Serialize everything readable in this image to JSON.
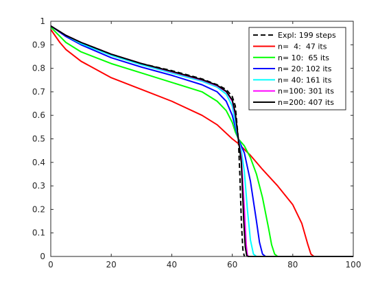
{
  "chart_data": {
    "type": "line",
    "title": "",
    "xlabel": "",
    "ylabel": "",
    "xlim": [
      0,
      100
    ],
    "ylim": [
      0,
      1
    ],
    "x_ticks": [
      0,
      20,
      40,
      60,
      80,
      100
    ],
    "y_ticks": [
      0,
      0.1,
      0.2,
      0.3,
      0.4,
      0.5,
      0.6,
      0.7,
      0.8,
      0.9,
      1
    ],
    "grid": false,
    "legend_position": "top-right",
    "series": [
      {
        "name": "Expl: 199 steps",
        "color": "#000000",
        "dashed": true,
        "points": [
          [
            0,
            0.98
          ],
          [
            5,
            0.94
          ],
          [
            10,
            0.91
          ],
          [
            20,
            0.86
          ],
          [
            30,
            0.82
          ],
          [
            40,
            0.79
          ],
          [
            50,
            0.755
          ],
          [
            55,
            0.73
          ],
          [
            58,
            0.71
          ],
          [
            60,
            0.68
          ],
          [
            61,
            0.64
          ],
          [
            62,
            0.5
          ],
          [
            62.5,
            0.35
          ],
          [
            63,
            0.15
          ],
          [
            63.5,
            0.03
          ],
          [
            64,
            0
          ]
        ]
      },
      {
        "name": "n=  4:  47 its",
        "color": "#ff0000",
        "dashed": false,
        "points": [
          [
            0,
            0.965
          ],
          [
            3,
            0.91
          ],
          [
            5,
            0.88
          ],
          [
            10,
            0.83
          ],
          [
            20,
            0.76
          ],
          [
            30,
            0.71
          ],
          [
            40,
            0.66
          ],
          [
            50,
            0.6
          ],
          [
            55,
            0.56
          ],
          [
            60,
            0.5
          ],
          [
            62,
            0.48
          ],
          [
            66,
            0.43
          ],
          [
            70,
            0.37
          ],
          [
            75,
            0.3
          ],
          [
            80,
            0.22
          ],
          [
            83,
            0.14
          ],
          [
            85,
            0.05
          ],
          [
            86,
            0.01
          ],
          [
            87,
            0
          ],
          [
            100,
            0
          ]
        ]
      },
      {
        "name": "n= 10:  65 its",
        "color": "#00ff00",
        "dashed": false,
        "points": [
          [
            0,
            0.975
          ],
          [
            5,
            0.91
          ],
          [
            10,
            0.87
          ],
          [
            20,
            0.82
          ],
          [
            30,
            0.78
          ],
          [
            40,
            0.74
          ],
          [
            50,
            0.7
          ],
          [
            55,
            0.66
          ],
          [
            58,
            0.62
          ],
          [
            60,
            0.57
          ],
          [
            61,
            0.53
          ],
          [
            62,
            0.5
          ],
          [
            64,
            0.47
          ],
          [
            66,
            0.42
          ],
          [
            68,
            0.35
          ],
          [
            70,
            0.25
          ],
          [
            72,
            0.12
          ],
          [
            73,
            0.05
          ],
          [
            74,
            0.01
          ],
          [
            75,
            0
          ],
          [
            100,
            0
          ]
        ]
      },
      {
        "name": "n= 20: 102 its",
        "color": "#0000ff",
        "dashed": false,
        "points": [
          [
            0,
            0.98
          ],
          [
            5,
            0.935
          ],
          [
            10,
            0.9
          ],
          [
            20,
            0.845
          ],
          [
            30,
            0.805
          ],
          [
            40,
            0.77
          ],
          [
            50,
            0.73
          ],
          [
            55,
            0.7
          ],
          [
            58,
            0.66
          ],
          [
            60,
            0.6
          ],
          [
            61,
            0.55
          ],
          [
            62,
            0.5
          ],
          [
            64,
            0.44
          ],
          [
            66,
            0.32
          ],
          [
            68,
            0.15
          ],
          [
            69,
            0.06
          ],
          [
            70,
            0.01
          ],
          [
            71,
            0
          ],
          [
            100,
            0
          ]
        ]
      },
      {
        "name": "n= 40: 161 its",
        "color": "#00ffff",
        "dashed": false,
        "points": [
          [
            0,
            0.98
          ],
          [
            5,
            0.94
          ],
          [
            10,
            0.905
          ],
          [
            20,
            0.855
          ],
          [
            30,
            0.815
          ],
          [
            40,
            0.78
          ],
          [
            50,
            0.745
          ],
          [
            55,
            0.72
          ],
          [
            58,
            0.69
          ],
          [
            60,
            0.64
          ],
          [
            61,
            0.57
          ],
          [
            62,
            0.5
          ],
          [
            63,
            0.45
          ],
          [
            64,
            0.36
          ],
          [
            65,
            0.2
          ],
          [
            66,
            0.07
          ],
          [
            67,
            0.01
          ],
          [
            68,
            0
          ],
          [
            100,
            0
          ]
        ]
      },
      {
        "name": "n=100: 301 its",
        "color": "#ff00ff",
        "dashed": false,
        "points": [
          [
            0,
            0.98
          ],
          [
            5,
            0.94
          ],
          [
            10,
            0.91
          ],
          [
            20,
            0.86
          ],
          [
            30,
            0.82
          ],
          [
            40,
            0.785
          ],
          [
            50,
            0.75
          ],
          [
            55,
            0.725
          ],
          [
            58,
            0.7
          ],
          [
            60,
            0.66
          ],
          [
            61,
            0.6
          ],
          [
            62,
            0.5
          ],
          [
            63,
            0.42
          ],
          [
            64,
            0.2
          ],
          [
            64.6,
            0.05
          ],
          [
            65,
            0.005
          ],
          [
            65.5,
            0
          ],
          [
            100,
            0
          ]
        ]
      },
      {
        "name": "n=200: 407 its",
        "color": "#000000",
        "dashed": false,
        "points": [
          [
            0,
            0.98
          ],
          [
            5,
            0.94
          ],
          [
            10,
            0.91
          ],
          [
            20,
            0.86
          ],
          [
            30,
            0.82
          ],
          [
            40,
            0.787
          ],
          [
            50,
            0.752
          ],
          [
            55,
            0.728
          ],
          [
            58,
            0.702
          ],
          [
            60,
            0.665
          ],
          [
            61,
            0.61
          ],
          [
            62,
            0.5
          ],
          [
            63,
            0.4
          ],
          [
            63.8,
            0.15
          ],
          [
            64.3,
            0.04
          ],
          [
            64.8,
            0.003
          ],
          [
            65.2,
            0
          ],
          [
            100,
            0
          ]
        ]
      }
    ]
  }
}
